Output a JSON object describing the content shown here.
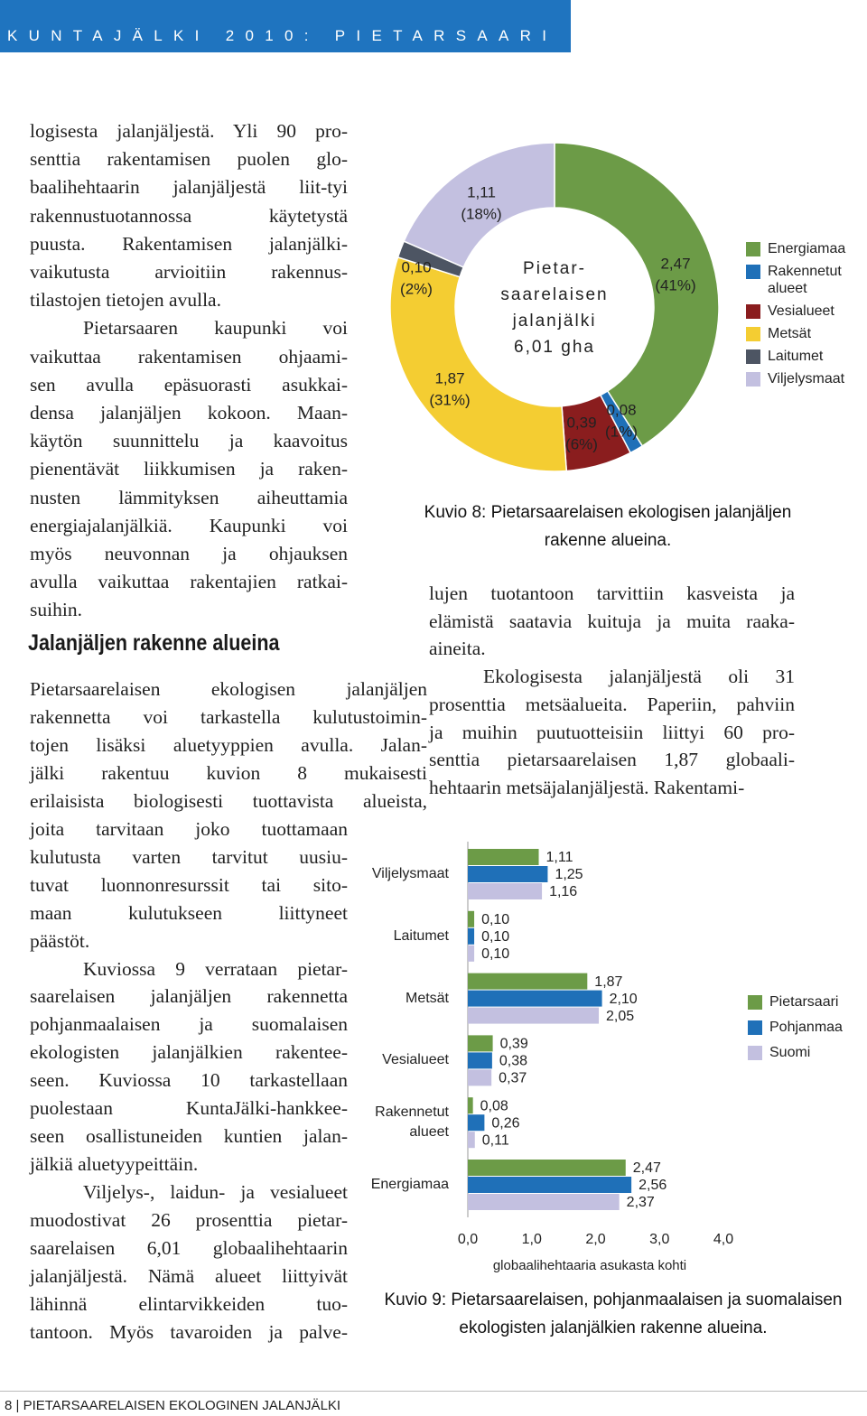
{
  "header": {
    "title": "KUNTAJÄLKI 2010: PIETARSAARI"
  },
  "column_left": {
    "paragraphs": [
      [
        "logisesta jalanjäljestä. Yli 90 pro-",
        "senttia rakentamisen puolen glo-",
        "baalihehtaarin jalanjäljestä liit-tyi",
        "rakennustuotannossa käytetystä",
        "puusta. Rakentamisen jalanjälki-",
        "vaikutusta arvioitiin rakennus-",
        "tilastojen tietojen avulla."
      ],
      [
        "Pietarsaaren kaupunki voi",
        "vaikuttaa rakentamisen ohjaami-",
        "sen avulla epäsuorasti asukkai-",
        "densa jalanjäljen kokoon. Maan-",
        "käytön suunnittelu ja kaavoitus",
        "pienentävät liikkumisen ja raken-",
        "nusten lämmityksen aiheuttamia",
        "energiajalanjälkiä. Kaupunki voi",
        "myös neuvonnan ja ohjauksen",
        "avulla vaikuttaa rakentajien ratkai-",
        "suihin."
      ]
    ]
  },
  "heading": "Jalanjäljen rakenne alueina",
  "column_left_lower": {
    "paragraphs": [
      [
        "Pietarsaarelaisen ekologisen jalanjäljen",
        "rakennetta voi tarkastella kulutustoimin-",
        "tojen lisäksi aluetyyppien avulla. Jalan-",
        "jälki rakentuu kuvion 8 mukaisesti",
        "erilaisista biologisesti tuottavista alueista,",
        "joita tarvitaan joko tuottamaan",
        "kulutusta varten tarvitut uusiu-",
        "tuvat luonnonresurssit tai sito-",
        "maan kulutukseen liittyneet",
        "päästöt."
      ],
      [
        "Kuviossa 9 verrataan pietar-",
        "saarelaisen jalanjäljen rakennetta",
        "pohjanmaalaisen ja suomalaisen",
        "ekologisten jalanjälkien rakentee-",
        "seen. Kuviossa 10 tarkastellaan",
        "puolestaan KuntaJälki-hankkee-",
        "seen osallistuneiden kuntien jalan-",
        "jälkiä aluetyypeittäin."
      ],
      [
        "Viljelys-, laidun- ja vesialueet",
        "muodostivat 26 prosenttia pietar-",
        "saarelaisen 6,01 globaalihehtaarin",
        "jalanjäljestä. Nämä alueet liittyivät",
        "lähinnä elintarvikkeiden tuo-",
        "tantoon. Myös tavaroiden ja palve-"
      ]
    ]
  },
  "column_right": {
    "paragraphs": [
      [
        "lujen tuotantoon tarvittiin kasveista ja",
        "elämistä saatavia kuituja ja muita raaka-",
        "aineita."
      ],
      [
        "Ekologisesta jalanjäljestä oli 31",
        "prosenttia metsäalueita. Paperiin, pahviin",
        "ja muihin puutuotteisiin liittyi 60 pro-",
        "senttia pietarsaarelaisen 1,87 globaali-",
        "hehtaarin metsäjalanjäljestä. Rakentami-"
      ]
    ]
  },
  "footer": "8 | PIETARSAARELAISEN EKOLOGINEN JALANJÄLKI",
  "chart_data": [
    {
      "type": "donut",
      "caption_lines": [
        "Kuvio 8: Pietarsaarelaisen ekologisen jalanjäljen",
        "rakenne alueina."
      ],
      "center_label": [
        "Pietar-",
        "saarelaisen",
        "jalanjälki",
        "6,01 gha"
      ],
      "categories": [
        "Energiamaa",
        "Rakennetut alueet",
        "Vesialueet",
        "Metsät",
        "Laitumet",
        "Viljelysmaat"
      ],
      "values": [
        2.47,
        0.08,
        0.39,
        1.87,
        0.1,
        1.11
      ],
      "value_labels": [
        "2,47",
        "0,08",
        "0,39",
        "1,87",
        "0,10",
        "1,11"
      ],
      "share_labels": [
        "(41%)",
        "(1%)",
        "(6%)",
        "(31%)",
        "(2%)",
        "(18%)"
      ],
      "colors": [
        "#6c9b47",
        "#1f70b8",
        "#8a1d1e",
        "#f4cd32",
        "#4d5563",
        "#c3c0e0"
      ],
      "legend": "right"
    },
    {
      "type": "bar",
      "orientation": "horizontal",
      "caption_lines": [
        "Kuvio 9: Pietarsaarelaisen, pohjanmaalaisen ja suomalaisen",
        "ekologisten jalanjälkien rakenne alueina."
      ],
      "xlabel": "globaalihehtaaria asukasta kohti",
      "categories": [
        "Viljelysmaat",
        "Laitumet",
        "Metsät",
        "Vesialueet",
        "Rakennetut alueet",
        "Energiamaa"
      ],
      "series": [
        {
          "name": "Pietarsaari",
          "color": "#6c9b47",
          "values": [
            1.11,
            0.1,
            1.87,
            0.39,
            0.08,
            2.47
          ],
          "value_labels": [
            "1,11",
            "0,10",
            "1,87",
            "0,39",
            "0,08",
            "2,47"
          ]
        },
        {
          "name": "Pohjanmaa",
          "color": "#1f70b8",
          "values": [
            1.25,
            0.1,
            2.1,
            0.38,
            0.26,
            2.56
          ],
          "value_labels": [
            "1,25",
            "0,10",
            "2,10",
            "0,38",
            "0,26",
            "2,56"
          ]
        },
        {
          "name": "Suomi",
          "color": "#c3c0e0",
          "values": [
            1.16,
            0.1,
            2.05,
            0.37,
            0.11,
            2.37
          ],
          "value_labels": [
            "1,16",
            "0,10",
            "2,05",
            "0,37",
            "0,11",
            "2,37"
          ]
        }
      ],
      "xlim": [
        0,
        4
      ],
      "xticks": [
        {
          "value": 0,
          "label": "0,0"
        },
        {
          "value": 1,
          "label": "1,0"
        },
        {
          "value": 2,
          "label": "2,0"
        },
        {
          "value": 3,
          "label": "3,0"
        },
        {
          "value": 4,
          "label": "4,0"
        }
      ],
      "grid": false,
      "legend": "right"
    }
  ]
}
